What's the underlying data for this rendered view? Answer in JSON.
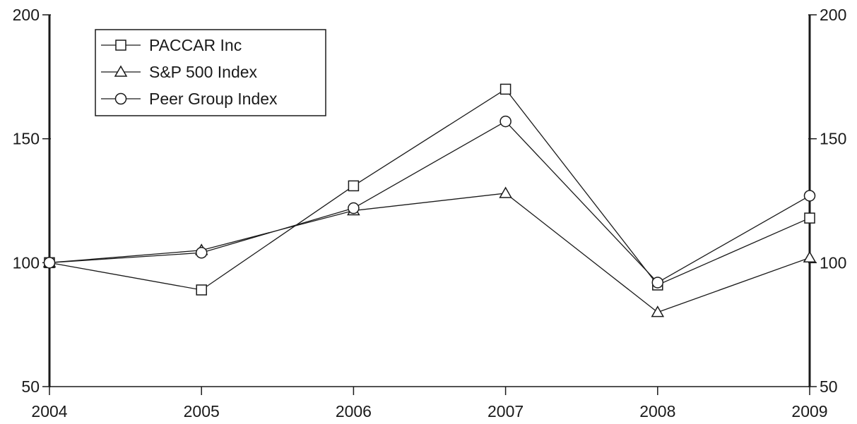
{
  "chart_data": {
    "type": "line",
    "x": [
      "2004",
      "2005",
      "2006",
      "2007",
      "2008",
      "2009"
    ],
    "ylim": [
      50,
      200
    ],
    "yticks": [
      50,
      100,
      150,
      200
    ],
    "grid": false,
    "legend_position": "top-left",
    "secondary_y_axis": true,
    "series": [
      {
        "name": "PACCAR Inc",
        "marker": "square",
        "values": [
          100,
          89,
          131,
          170,
          91,
          118
        ]
      },
      {
        "name": "S&P 500 Index",
        "marker": "triangle",
        "values": [
          100,
          105,
          121,
          128,
          80,
          102
        ]
      },
      {
        "name": "Peer Group Index",
        "marker": "circle",
        "values": [
          100,
          104,
          122,
          157,
          92,
          127
        ]
      }
    ]
  }
}
